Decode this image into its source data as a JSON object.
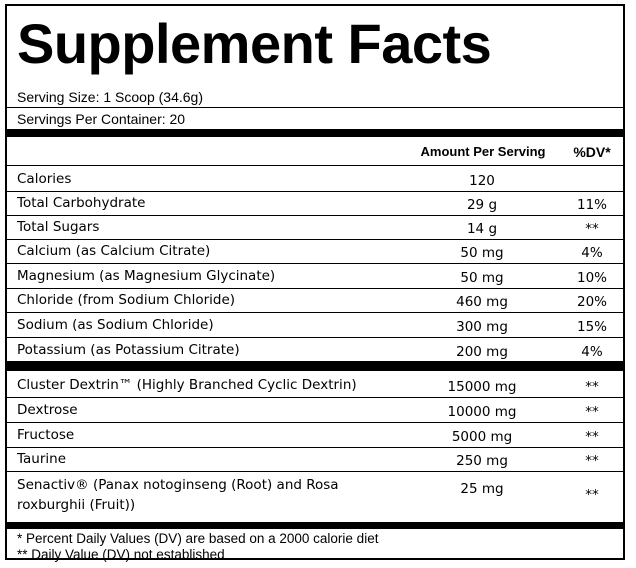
{
  "title": "Supplement Facts",
  "serving_size": "Serving Size: 1 Scoop (34.6g)",
  "servings_per_container": "Servings Per Container: 20",
  "header": {
    "amount": "Amount Per Serving",
    "dv": "%DV*"
  },
  "rows_group1": [
    {
      "name": "Calories",
      "amount": "120",
      "dv": ""
    },
    {
      "name": "Total Carbohydrate",
      "amount": "29 g",
      "dv": "11%"
    },
    {
      "name": "Total Sugars",
      "amount": "14 g",
      "dv": "**"
    },
    {
      "name": "Calcium (as Calcium Citrate)",
      "amount": "50 mg",
      "dv": "4%"
    },
    {
      "name": "Magnesium (as Magnesium Glycinate)",
      "amount": "50 mg",
      "dv": "10%"
    },
    {
      "name": "Chloride (from Sodium Chloride)",
      "amount": "460 mg",
      "dv": "20%"
    },
    {
      "name": "Sodium (as Sodium Chloride)",
      "amount": "300 mg",
      "dv": "15%"
    },
    {
      "name": "Potassium (as Potassium Citrate)",
      "amount": "200 mg",
      "dv": "4%"
    }
  ],
  "rows_group2": [
    {
      "name": "Cluster Dextrin™ (Highly Branched Cyclic Dextrin)",
      "amount": "15000 mg",
      "dv": "**"
    },
    {
      "name": "Dextrose",
      "amount": "10000 mg",
      "dv": "**"
    },
    {
      "name": "Fructose",
      "amount": "5000 mg",
      "dv": "**"
    },
    {
      "name": "Taurine",
      "amount": "250 mg",
      "dv": "**"
    },
    {
      "name": "Senactiv® (Panax notoginseng (Root) and Rosa roxburghii (Fruit))",
      "amount": "25 mg",
      "dv": "**"
    }
  ],
  "footnotes": [
    "* Percent Daily Values (DV) are based on a 2000 calorie diet",
    "** Daily Value (DV) not established"
  ]
}
